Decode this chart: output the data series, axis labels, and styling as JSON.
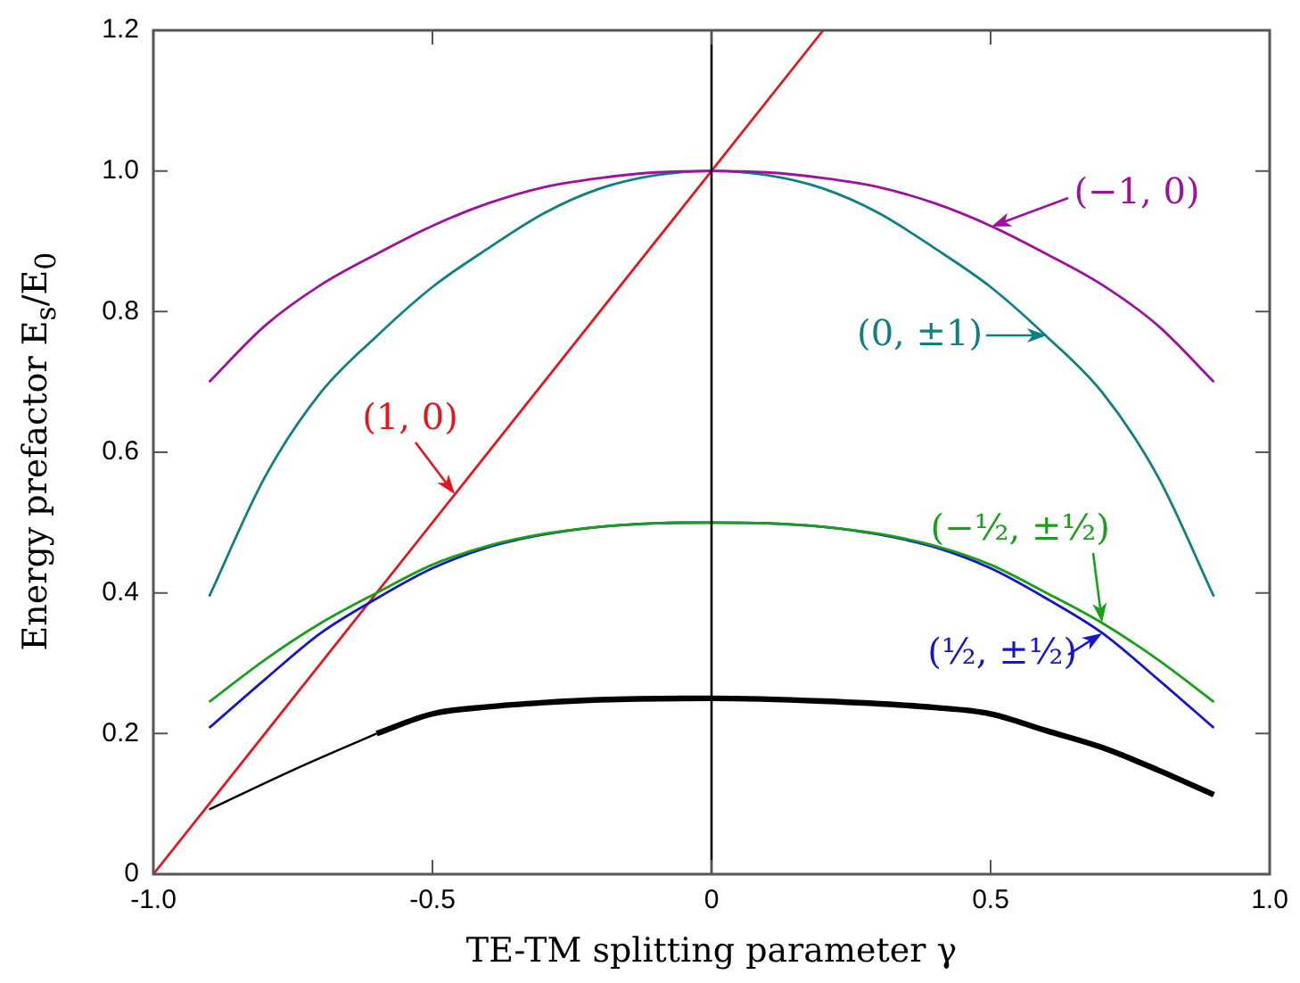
{
  "chart_data": {
    "type": "line",
    "xlabel": "TE-TM splitting parameter γ",
    "ylabel": "Energy prefactor E$_{s}$/E$_{0}$",
    "xlim": [
      -1,
      1
    ],
    "ylim": [
      0,
      1.2
    ],
    "xticks": [
      {
        "value": -1,
        "label": "-1.0"
      },
      -0.5,
      0,
      0.5,
      {
        "value": 1,
        "label": "1.0"
      }
    ],
    "yticks": [
      0,
      0.2,
      0.4,
      0.6,
      0.8,
      {
        "value": 1,
        "label": "1.0"
      },
      {
        "value": 1.2,
        "label": "1.2"
      }
    ],
    "grid": false,
    "legend": false,
    "marker": "none",
    "line_style": "solid",
    "ref_lines": [
      {
        "axis": "x",
        "value": 0,
        "label": null,
        "color": "#000000"
      }
    ],
    "series": [
      {
        "color": "#a0109f",
        "x": [
          -0.9,
          -0.8,
          -0.7,
          -0.6,
          -0.5,
          -0.4,
          -0.3,
          -0.2,
          -0.1,
          0,
          0.1,
          0.2,
          0.3,
          0.4,
          0.5,
          0.6,
          0.7,
          0.8,
          0.9
        ],
        "values": [
          0.7,
          0.78,
          0.838,
          0.882,
          0.922,
          0.954,
          0.977,
          0.99,
          0.998,
          1,
          0.998,
          0.99,
          0.977,
          0.954,
          0.922,
          0.882,
          0.838,
          0.78,
          0.7
        ]
      },
      {
        "color": "#0e8080",
        "x": [
          -0.9,
          -0.8,
          -0.7,
          -0.6,
          -0.5,
          -0.4,
          -0.3,
          -0.2,
          -0.1,
          0,
          0.1,
          0.2,
          0.3,
          0.4,
          0.5,
          0.6,
          0.7,
          0.8,
          0.9
        ],
        "values": [
          0.395,
          0.565,
          0.685,
          0.765,
          0.835,
          0.89,
          0.94,
          0.975,
          0.994,
          1,
          0.994,
          0.975,
          0.94,
          0.89,
          0.835,
          0.765,
          0.685,
          0.565,
          0.395
        ]
      },
      {
        "color": "#18a018",
        "x": [
          -0.9,
          -0.8,
          -0.7,
          -0.6,
          -0.5,
          -0.4,
          -0.3,
          -0.2,
          -0.1,
          0,
          0.1,
          0.2,
          0.3,
          0.4,
          0.5,
          0.6,
          0.7,
          0.8,
          0.9
        ],
        "values": [
          0.245,
          0.305,
          0.357,
          0.4,
          0.44,
          0.467,
          0.484,
          0.494,
          0.499,
          0.5,
          0.499,
          0.494,
          0.484,
          0.467,
          0.44,
          0.4,
          0.357,
          0.305,
          0.245
        ]
      },
      {
        "color": "#1515cc",
        "x": [
          -0.9,
          -0.8,
          -0.7,
          -0.6,
          -0.5,
          -0.4,
          -0.3,
          -0.2,
          -0.1,
          0,
          0.1,
          0.2,
          0.3,
          0.4,
          0.5,
          0.6,
          0.7,
          0.8,
          0.9
        ],
        "values": [
          0.208,
          0.277,
          0.343,
          0.392,
          0.435,
          0.465,
          0.483,
          0.494,
          0.499,
          0.5,
          0.499,
          0.494,
          0.483,
          0.465,
          0.435,
          0.392,
          0.343,
          0.277,
          0.208
        ]
      },
      {
        "color": "#000000",
        "x": [
          -0.9,
          -0.75,
          -0.6
        ],
        "values": [
          0.092,
          0.148,
          0.2
        ]
      },
      {
        "color": "#000000",
        "x": [
          -0.6,
          -0.5,
          -0.4,
          -0.3,
          -0.2,
          0,
          0.2,
          0.4,
          0.5,
          0.6,
          0.7,
          0.8,
          0.9
        ],
        "values": [
          0.2,
          0.228,
          0.238,
          0.244,
          0.248,
          0.25,
          0.246,
          0.237,
          0.228,
          0.204,
          0.18,
          0.148,
          0.113
        ]
      },
      {
        "color": "#e8141c",
        "x": [
          -1,
          -0.46,
          0.2
        ],
        "values": [
          0,
          0.54,
          1.2
        ]
      }
    ],
    "annotations": [
      {
        "text": "(1, 0)",
        "x": -0.46,
        "y": 0.54
      },
      {
        "text": "(−1, 0)",
        "x": 0.5,
        "y": 0.922
      },
      {
        "text": "(0, ±1)",
        "x": 0.6,
        "y": 0.765
      },
      {
        "text": "(−½, ±½)",
        "x": 0.7,
        "y": 0.357
      },
      {
        "text": "(½, ±½)",
        "x": 0.7,
        "y": 0.343
      }
    ]
  }
}
